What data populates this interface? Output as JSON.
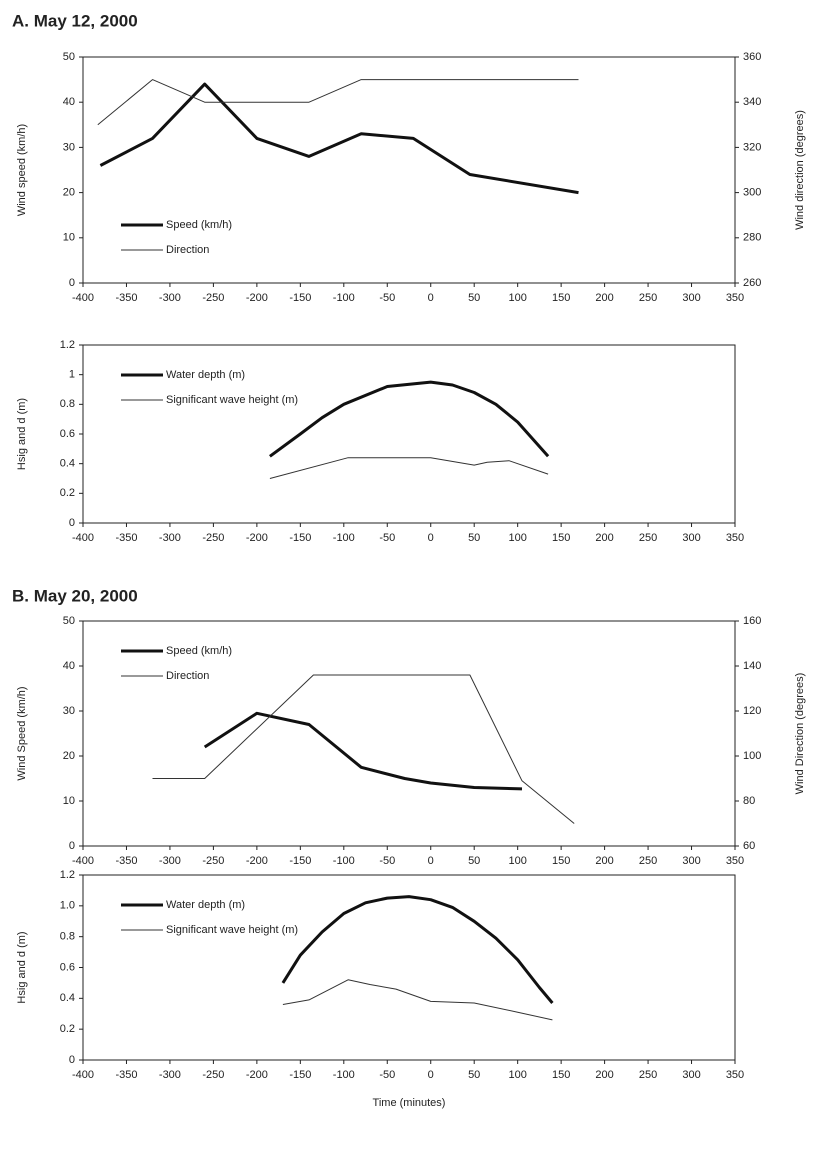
{
  "chart_data": [
    {
      "type": "line",
      "title": "A. May 12, 2000",
      "y_label": "Wind speed (km/h)",
      "y2_label": "Wind direction (degrees)",
      "xlim": [
        -400,
        350
      ],
      "xticks": [
        -400,
        -350,
        -300,
        -250,
        -200,
        -150,
        -100,
        -50,
        0,
        50,
        100,
        150,
        200,
        250,
        300,
        350
      ],
      "ylim": [
        0,
        50
      ],
      "yticks": [
        0,
        10,
        20,
        30,
        40,
        50
      ],
      "y2lim": [
        260,
        360
      ],
      "y2ticks": [
        260,
        280,
        300,
        320,
        340,
        360
      ],
      "legend": "lower left",
      "grid": false,
      "series": [
        {
          "name": "Speed (km/h)",
          "color": "#111111",
          "line_width": 3,
          "x": [
            -380,
            -320,
            -260,
            -200,
            -140,
            -80,
            -20,
            45,
            170
          ],
          "values": [
            26,
            32,
            44,
            32,
            28,
            33,
            32,
            24,
            20
          ]
        },
        {
          "name": "Direction",
          "color": "#333333",
          "line_width": 1,
          "axis": "y2",
          "x": [
            -383,
            -320,
            -260,
            -140,
            -80,
            170
          ],
          "values": [
            330,
            350,
            340,
            340,
            350,
            350
          ]
        }
      ]
    },
    {
      "type": "line",
      "y_label": "Hsig and d (m)",
      "xlim": [
        -400,
        350
      ],
      "xticks": [
        -400,
        -350,
        -300,
        -250,
        -200,
        -150,
        -100,
        -50,
        0,
        50,
        100,
        150,
        200,
        250,
        300,
        350
      ],
      "ylim": [
        0,
        1.2
      ],
      "yticks": [
        0,
        0.2,
        0.4,
        0.6,
        0.8,
        1,
        1.2
      ],
      "legend": "upper left",
      "grid": false,
      "series": [
        {
          "name": "Water depth (m)",
          "color": "#111111",
          "line_width": 3,
          "x": [
            -185,
            -150,
            -125,
            -100,
            -50,
            0,
            25,
            50,
            75,
            100,
            135
          ],
          "values": [
            0.45,
            0.6,
            0.71,
            0.8,
            0.92,
            0.95,
            0.93,
            0.88,
            0.8,
            0.68,
            0.45
          ]
        },
        {
          "name": "Significant wave height (m)",
          "color": "#333333",
          "line_width": 1,
          "x": [
            -185,
            -95,
            0,
            50,
            65,
            90,
            135
          ],
          "values": [
            0.3,
            0.44,
            0.44,
            0.39,
            0.41,
            0.42,
            0.33
          ]
        }
      ]
    },
    {
      "type": "line",
      "title": "B. May 20, 2000",
      "y_label": "Wind Speed (km/h)",
      "y2_label": "Wind Direction (degrees)",
      "xlim": [
        -400,
        350
      ],
      "xticks": [
        -400,
        -350,
        -300,
        -250,
        -200,
        -150,
        -100,
        -50,
        0,
        50,
        100,
        150,
        200,
        250,
        300,
        350
      ],
      "ylim": [
        0,
        50
      ],
      "yticks": [
        0,
        10,
        20,
        30,
        40,
        50
      ],
      "y2lim": [
        60,
        160
      ],
      "y2ticks": [
        60,
        80,
        100,
        120,
        140,
        160
      ],
      "legend": "upper left",
      "grid": false,
      "series": [
        {
          "name": "Speed (km/h)",
          "color": "#111111",
          "line_width": 3,
          "x": [
            -260,
            -200,
            -140,
            -80,
            -30,
            0,
            50,
            105
          ],
          "values": [
            22,
            29.5,
            27,
            17.5,
            15,
            14,
            13,
            12.7
          ]
        },
        {
          "name": "Direction",
          "color": "#333333",
          "line_width": 1,
          "axis": "y2",
          "x": [
            -320,
            -260,
            -135,
            45,
            105,
            165
          ],
          "values": [
            90,
            90,
            136,
            136,
            89,
            70
          ]
        }
      ]
    },
    {
      "type": "line",
      "y_label": "Hsig and d (m)",
      "x_label": "Time (minutes)",
      "xlim": [
        -400,
        350
      ],
      "xticks": [
        -400,
        -350,
        -300,
        -250,
        -200,
        -150,
        -100,
        -50,
        0,
        50,
        100,
        150,
        200,
        250,
        300,
        350
      ],
      "ylim": [
        0,
        1.2
      ],
      "yticks": [
        0,
        0.2,
        0.4,
        0.6,
        0.8,
        {
          "value": 1,
          "label": "1.0"
        },
        1.2
      ],
      "legend": "upper left",
      "grid": false,
      "series": [
        {
          "name": "Water depth (m)",
          "color": "#111111",
          "line_width": 3,
          "x": [
            -170,
            -150,
            -125,
            -100,
            -75,
            -50,
            -25,
            0,
            25,
            50,
            75,
            100,
            125,
            140
          ],
          "values": [
            0.5,
            0.68,
            0.83,
            0.95,
            1.02,
            1.05,
            1.06,
            1.04,
            0.99,
            0.9,
            0.79,
            0.65,
            0.47,
            0.37
          ]
        },
        {
          "name": "Significant wave height (m)",
          "color": "#333333",
          "line_width": 1,
          "x": [
            -170,
            -140,
            -95,
            -70,
            -40,
            0,
            50,
            100,
            140
          ],
          "values": [
            0.36,
            0.39,
            0.52,
            0.49,
            0.46,
            0.38,
            0.37,
            0.31,
            0.26
          ]
        }
      ]
    }
  ]
}
